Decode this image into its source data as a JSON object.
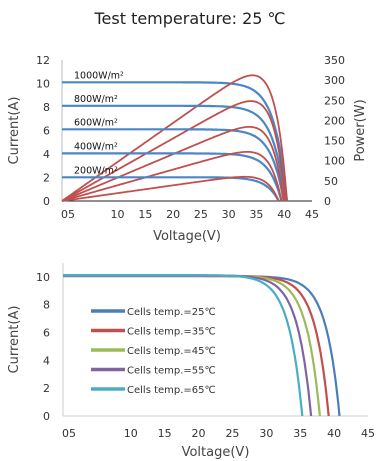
{
  "heading": "Test temperature: 25 ℃",
  "chart_data": [
    {
      "type": "line",
      "xlabel": "Voltage(V)",
      "ylabel_left": "Current(A)",
      "ylabel_right": "Power(W)",
      "x_ticks": [
        "05",
        "10",
        "15",
        "20",
        "25",
        "30",
        "35",
        "40",
        "45"
      ],
      "y_left_ticks": [
        "0",
        "2",
        "4",
        "6",
        "8",
        "10",
        "12"
      ],
      "y_right_ticks": [
        "0",
        "50",
        "100",
        "150",
        "200",
        "250",
        "300",
        "350"
      ],
      "xlim": [
        0,
        45
      ],
      "ylim_left": [
        0,
        12
      ],
      "ylim_right": [
        0,
        350
      ],
      "grid": false,
      "colors": {
        "current": "#4b86c6",
        "power": "#c0504d"
      },
      "series": [
        {
          "name": "1000W/m²",
          "isc": 10.1,
          "voc": 40.5,
          "vmp": 34.4,
          "pmax": 312
        },
        {
          "name": "800W/m²",
          "isc": 8.1,
          "voc": 40.2,
          "vmp": 34.1,
          "pmax": 248
        },
        {
          "name": "600W/m²",
          "isc": 6.1,
          "voc": 39.9,
          "vmp": 33.8,
          "pmax": 184
        },
        {
          "name": "400W/m²",
          "isc": 4.05,
          "voc": 39.5,
          "vmp": 33.3,
          "pmax": 122
        },
        {
          "name": "200W/m²",
          "isc": 2.02,
          "voc": 39.0,
          "vmp": 32.8,
          "pmax": 60
        }
      ]
    },
    {
      "type": "line",
      "xlabel": "Voltage(V)",
      "ylabel": "Current(A)",
      "x_ticks": [
        "05",
        "10",
        "15",
        "20",
        "25",
        "30",
        "35",
        "40",
        "45"
      ],
      "y_ticks": [
        "0",
        "2",
        "4",
        "6",
        "8",
        "10"
      ],
      "xlim": [
        0,
        45
      ],
      "ylim": [
        0,
        11
      ],
      "grid": false,
      "legend": "bottom-left",
      "series": [
        {
          "name": "Cells temp.=25℃",
          "color": "#4a7ebb",
          "isc": 10.05,
          "voc": 40.8
        },
        {
          "name": "Cells temp.=35℃",
          "color": "#c0504d",
          "isc": 10.07,
          "voc": 39.2
        },
        {
          "name": "Cells temp.=45℃",
          "color": "#9bbb59",
          "isc": 10.09,
          "voc": 37.9
        },
        {
          "name": "Cells temp.=55℃",
          "color": "#8064a2",
          "isc": 10.11,
          "voc": 36.6
        },
        {
          "name": "Cells temp.=65℃",
          "color": "#4bacc6",
          "isc": 10.13,
          "voc": 35.3
        }
      ]
    }
  ]
}
